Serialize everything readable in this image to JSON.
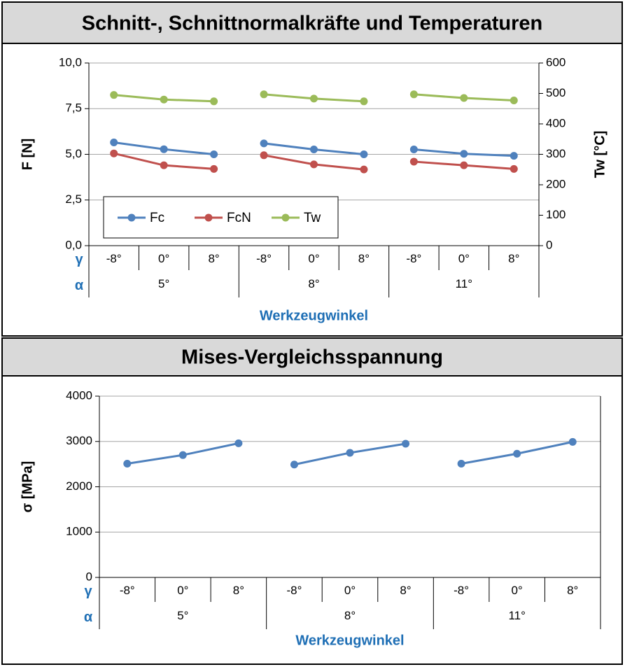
{
  "chart_data": [
    {
      "type": "line",
      "title": "Schnitt-, Schnittnormalkräfte und Temperaturen",
      "ylabel": "F [N]",
      "y2label": "Tw [°C]",
      "xlabel": "Werkzeugwinkel",
      "row_labels": [
        "γ",
        "α"
      ],
      "categories": [
        "-8°",
        "0°",
        "8°",
        "-8°",
        "0°",
        "8°",
        "-8°",
        "0°",
        "8°"
      ],
      "groups": [
        "5°",
        "8°",
        "11°"
      ],
      "series": [
        {
          "name": "Fc",
          "color": "#4f81bd",
          "values": [
            5.65,
            5.28,
            5.0,
            5.6,
            5.27,
            5.0,
            5.27,
            5.03,
            4.92
          ]
        },
        {
          "name": "FcN",
          "color": "#c0504d",
          "values": [
            5.05,
            4.4,
            4.2,
            4.95,
            4.45,
            4.17,
            4.6,
            4.4,
            4.2
          ]
        },
        {
          "name": "Tw",
          "color": "#9bbb59",
          "axis": "y2",
          "values": [
            495,
            480,
            474,
            497,
            483,
            474,
            497,
            485,
            477
          ]
        }
      ],
      "ylim": [
        0,
        10
      ],
      "yticks": [
        {
          "value": 0,
          "label": "0,0"
        },
        {
          "value": 2.5,
          "label": "2,5"
        },
        {
          "value": 5,
          "label": "5,0"
        },
        {
          "value": 7.5,
          "label": "7,5"
        },
        {
          "value": 10,
          "label": "10,0"
        }
      ],
      "y2lim": [
        0,
        600
      ],
      "y2ticks": [
        0,
        100,
        200,
        300,
        400,
        500,
        600
      ],
      "grid": true,
      "legend": "lower left"
    },
    {
      "type": "line",
      "title": "Mises-Vergleichsspannung",
      "ylabel": "σ [MPa]",
      "xlabel": "Werkzeugwinkel",
      "row_labels": [
        "γ",
        "α"
      ],
      "categories": [
        "-8°",
        "0°",
        "8°",
        "-8°",
        "0°",
        "8°",
        "-8°",
        "0°",
        "8°"
      ],
      "groups": [
        "5°",
        "8°",
        "11°"
      ],
      "color": "#4f81bd",
      "values": [
        2510,
        2700,
        2960,
        2490,
        2750,
        2950,
        2510,
        2730,
        2990
      ],
      "ylim": [
        0,
        4000
      ],
      "yticks": [
        0,
        1000,
        2000,
        3000,
        4000
      ],
      "grid": true
    }
  ]
}
